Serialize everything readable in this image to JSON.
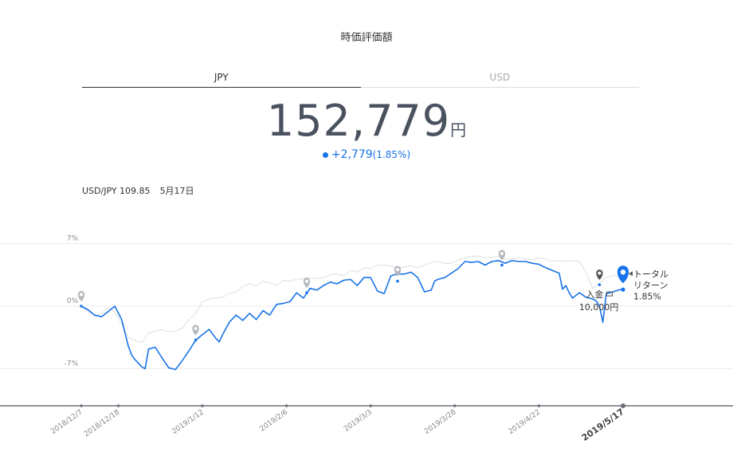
{
  "header": {
    "title": "時価評価額"
  },
  "tabs": [
    {
      "label": "JPY",
      "active": true
    },
    {
      "label": "USD",
      "active": false
    }
  ],
  "valuation": {
    "amount": "152,779",
    "unit": "円",
    "change": "+2,779",
    "change_pct": "(1.85%)"
  },
  "fx": {
    "pair_rate": "USD/JPY 109.85",
    "date": "5月17日"
  },
  "colors": {
    "primary": "#1a73e8",
    "benchmark": "#e6e6e6",
    "text": "#4a5260"
  },
  "chart_data": {
    "type": "line",
    "ylim": [
      -11,
      9
    ],
    "yticks": [
      {
        "value": 7,
        "label": "7%"
      },
      {
        "value": 0,
        "label": "0%"
      },
      {
        "value": -7,
        "label": "-7%"
      }
    ],
    "xlim": [
      0,
      161
    ],
    "xticks": [
      {
        "x": 0,
        "label": "2018/12/7",
        "bold": false
      },
      {
        "x": 11,
        "label": "2018/12/18",
        "bold": false
      },
      {
        "x": 36,
        "label": "2019/1/12",
        "bold": false
      },
      {
        "x": 61,
        "label": "2019/2/6",
        "bold": false
      },
      {
        "x": 86,
        "label": "2019/3/3",
        "bold": false
      },
      {
        "x": 111,
        "label": "2019/3/28",
        "bold": false
      },
      {
        "x": 136,
        "label": "2019/4/22",
        "bold": false
      },
      {
        "x": 161,
        "label": "2019/5/17",
        "bold": true
      }
    ],
    "series": [
      {
        "role": "portfolio",
        "x": [
          0,
          2,
          4,
          6,
          8,
          10,
          12,
          14,
          15,
          16,
          18,
          19,
          20,
          22,
          24,
          26,
          28,
          30,
          32,
          34,
          36,
          38,
          40,
          41,
          42,
          44,
          46,
          48,
          50,
          52,
          54,
          56,
          58,
          60,
          62,
          64,
          66,
          68,
          70,
          72,
          74,
          76,
          78,
          80,
          82,
          84,
          86,
          88,
          90,
          92,
          94,
          96,
          98,
          100,
          102,
          104,
          105,
          106,
          108,
          110,
          112,
          114,
          116,
          118,
          120,
          122,
          124,
          126,
          128,
          130,
          132,
          134,
          136,
          138,
          140,
          142,
          143,
          144,
          145,
          146,
          148,
          150,
          152,
          153,
          154,
          155,
          156,
          158,
          160,
          161
        ],
        "y": [
          0,
          -0.4,
          -1.0,
          -1.2,
          -0.6,
          0,
          -1.5,
          -4.5,
          -5.5,
          -6,
          -6.8,
          -7.0,
          -4.8,
          -4.6,
          -5.8,
          -6.9,
          -7.1,
          -6.1,
          -5.0,
          -3.8,
          -3.2,
          -2.6,
          -3.6,
          -4.0,
          -3.2,
          -1.8,
          -1.0,
          -1.6,
          -0.8,
          -1.5,
          -0.5,
          -1.0,
          0.2,
          0.3,
          0.5,
          1.5,
          0.9,
          2.0,
          1.8,
          2.3,
          2.7,
          2.5,
          2.9,
          3.0,
          2.3,
          3.2,
          3.2,
          1.7,
          1.4,
          3.4,
          3.6,
          3.6,
          3.8,
          3.2,
          1.6,
          1.8,
          2.8,
          3.0,
          3.2,
          3.7,
          4.2,
          5.0,
          4.9,
          5.0,
          4.6,
          5.0,
          5.1,
          4.8,
          5.1,
          5.0,
          5.0,
          4.8,
          4.7,
          4.3,
          4.0,
          3.7,
          1.9,
          2.3,
          1.5,
          0.9,
          1.5,
          1.0,
          0.8,
          0.6,
          0.0,
          -1.8,
          1.4,
          1.6,
          1.85,
          1.85
        ]
      },
      {
        "role": "benchmark",
        "x": [
          0,
          2,
          4,
          6,
          8,
          10,
          12,
          14,
          16,
          18,
          20,
          22,
          24,
          26,
          28,
          30,
          32,
          34,
          36,
          38,
          40,
          42,
          44,
          46,
          48,
          50,
          52,
          54,
          56,
          58,
          60,
          62,
          64,
          66,
          68,
          70,
          72,
          74,
          76,
          78,
          80,
          82,
          84,
          86,
          88,
          90,
          92,
          94,
          96,
          98,
          100,
          102,
          104,
          106,
          108,
          110,
          112,
          114,
          116,
          118,
          120,
          122,
          124,
          126,
          128,
          130,
          132,
          134,
          136,
          138,
          140,
          142,
          144,
          146,
          148,
          150,
          152,
          154,
          156,
          158,
          160,
          161
        ],
        "y": [
          0,
          -0.6,
          -1.2,
          -0.8,
          -0.2,
          -0.6,
          -2.0,
          -3.5,
          -3.8,
          -4.1,
          -3.0,
          -2.8,
          -2.6,
          -2.9,
          -2.8,
          -2.5,
          -1.5,
          -0.8,
          0.5,
          0.8,
          0.9,
          1.0,
          1.4,
          1.6,
          2.2,
          2.5,
          2.3,
          2.8,
          2.6,
          2.3,
          2.9,
          2.8,
          3.0,
          3.1,
          3.2,
          3.1,
          3.2,
          3.5,
          3.6,
          3.4,
          4.0,
          3.8,
          4.3,
          4.2,
          4.6,
          4.6,
          4.5,
          4.3,
          4.4,
          4.5,
          4.3,
          4.6,
          4.9,
          5.0,
          4.8,
          4.8,
          5.2,
          5.4,
          5.6,
          5.6,
          5.4,
          5.5,
          5.6,
          5.3,
          5.3,
          5.4,
          5.3,
          5.2,
          5.4,
          5.3,
          5.0,
          5.1,
          5.0,
          5.1,
          5.0,
          3.8,
          2.0,
          2.6,
          3.2,
          3.4,
          3.4,
          3.4
        ]
      }
    ],
    "events": [
      {
        "x": 0,
        "y": 0
      },
      {
        "x": 34,
        "y": -3.8
      },
      {
        "x": 67,
        "y": 1.5
      },
      {
        "x": 94,
        "y": 2.8
      },
      {
        "x": 125,
        "y": 4.6
      },
      {
        "x": 154,
        "y": 2.4,
        "label": "入金",
        "amount": "10,000円"
      }
    ],
    "current": {
      "x": 161,
      "y": 1.85,
      "label": "トータル",
      "label2": "リターン",
      "value": "1.85%"
    }
  }
}
